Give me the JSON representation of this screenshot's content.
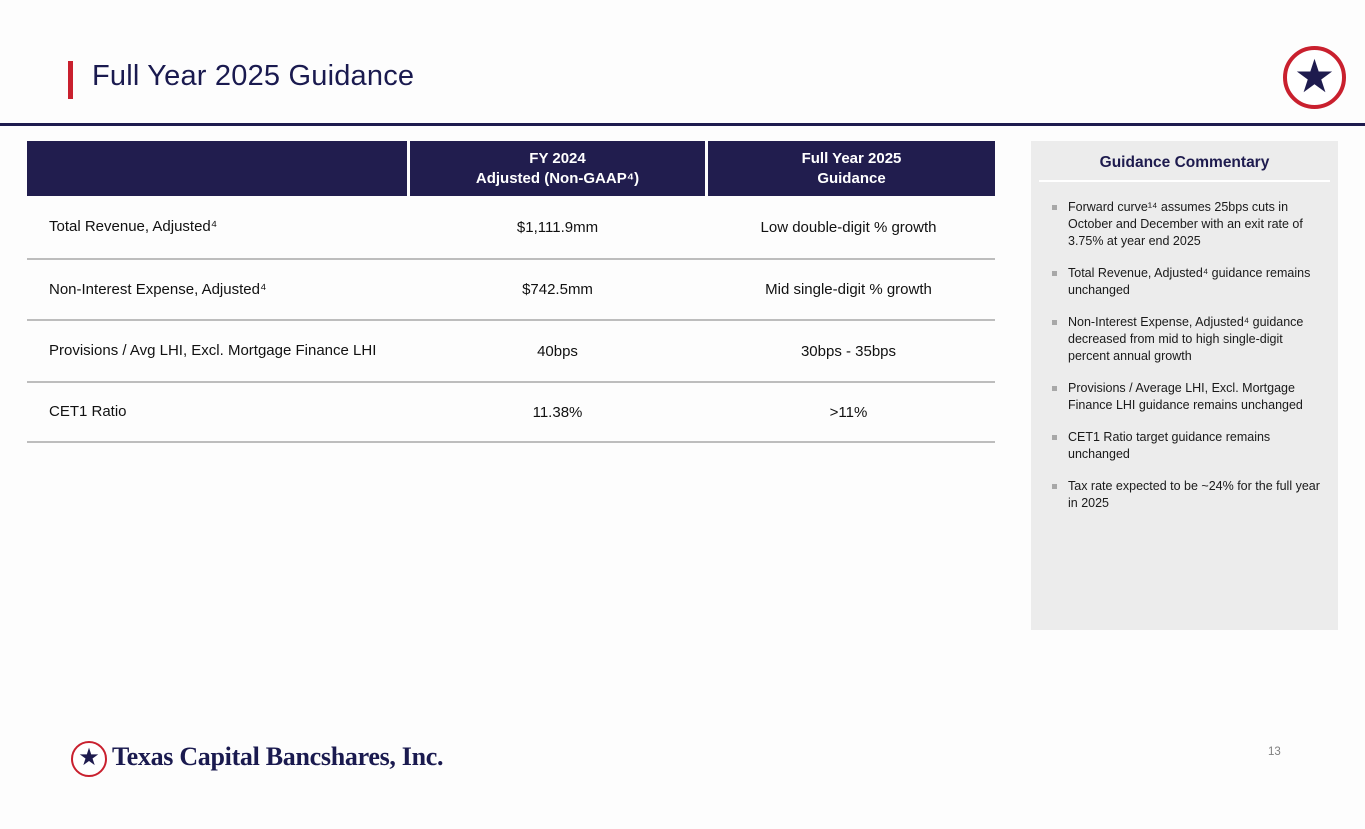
{
  "slide": {
    "title": "Full Year 2025 Guidance",
    "page_number": "13",
    "footer_brand": "Texas Capital Bancshares, Inc."
  },
  "colors": {
    "navy": "#1e1b4e",
    "red": "#c9202e",
    "panel_gray": "#ececec",
    "separator_gray": "#bdbdbd"
  },
  "icons": {
    "logo_star": "★"
  },
  "table": {
    "header": {
      "col1": "",
      "col2": "FY 2024\nAdjusted (Non-GAAP⁴)",
      "col3": "Full Year 2025\nGuidance"
    },
    "rows": [
      {
        "label": "Total Revenue, Adjusted⁴",
        "fy2024": "$1,111.9mm",
        "guidance": "Low double-digit % growth"
      },
      {
        "label": "Non-Interest Expense, Adjusted⁴",
        "fy2024": "$742.5mm",
        "guidance": "Mid single-digit % growth"
      },
      {
        "label": "Provisions / Avg LHI, Excl. Mortgage Finance LHI",
        "fy2024": "40bps",
        "guidance": "30bps - 35bps"
      },
      {
        "label": "CET1 Ratio",
        "fy2024": "11.38%",
        "guidance": ">11%"
      }
    ]
  },
  "commentary": {
    "title": "Guidance Commentary",
    "bullets": [
      "Forward curve¹⁴ assumes 25bps cuts in October and December with an exit rate of 3.75% at year end 2025",
      "Total Revenue, Adjusted⁴ guidance remains unchanged",
      "Non-Interest Expense, Adjusted⁴ guidance decreased from mid to high single-digit percent annual growth",
      "Provisions / Average LHI, Excl. Mortgage Finance LHI guidance remains unchanged",
      "CET1 Ratio target guidance remains unchanged",
      "Tax rate expected to be ~24% for the full year in 2025"
    ]
  }
}
